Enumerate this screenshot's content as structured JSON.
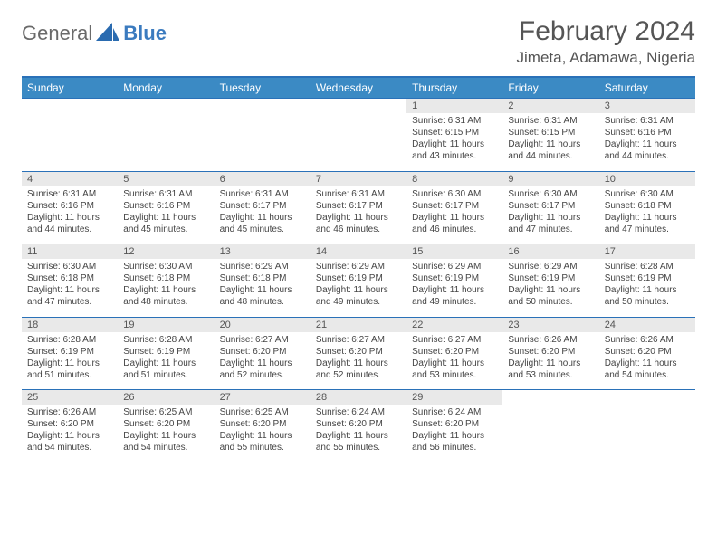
{
  "logo": {
    "text1": "General",
    "text2": "Blue"
  },
  "title": "February 2024",
  "location": "Jimeta, Adamawa, Nigeria",
  "colors": {
    "header_bg": "#3b8ac4",
    "header_text": "#ffffff",
    "border": "#2a71b8",
    "daynum_bg": "#e9e9e9",
    "text": "#444444",
    "title_color": "#555555",
    "logo_gray": "#6a6a6a",
    "logo_blue": "#3b7bbf",
    "page_bg": "#ffffff"
  },
  "typography": {
    "title_fontsize": 30,
    "location_fontsize": 17,
    "th_fontsize": 12,
    "daynum_fontsize": 11,
    "cell_fontsize": 10,
    "font_family": "Arial"
  },
  "day_headers": [
    "Sunday",
    "Monday",
    "Tuesday",
    "Wednesday",
    "Thursday",
    "Friday",
    "Saturday"
  ],
  "weeks": [
    [
      {
        "empty": true
      },
      {
        "empty": true
      },
      {
        "empty": true
      },
      {
        "empty": true
      },
      {
        "day": "1",
        "sunrise": "Sunrise: 6:31 AM",
        "sunset": "Sunset: 6:15 PM",
        "daylight": "Daylight: 11 hours and 43 minutes."
      },
      {
        "day": "2",
        "sunrise": "Sunrise: 6:31 AM",
        "sunset": "Sunset: 6:15 PM",
        "daylight": "Daylight: 11 hours and 44 minutes."
      },
      {
        "day": "3",
        "sunrise": "Sunrise: 6:31 AM",
        "sunset": "Sunset: 6:16 PM",
        "daylight": "Daylight: 11 hours and 44 minutes."
      }
    ],
    [
      {
        "day": "4",
        "sunrise": "Sunrise: 6:31 AM",
        "sunset": "Sunset: 6:16 PM",
        "daylight": "Daylight: 11 hours and 44 minutes."
      },
      {
        "day": "5",
        "sunrise": "Sunrise: 6:31 AM",
        "sunset": "Sunset: 6:16 PM",
        "daylight": "Daylight: 11 hours and 45 minutes."
      },
      {
        "day": "6",
        "sunrise": "Sunrise: 6:31 AM",
        "sunset": "Sunset: 6:17 PM",
        "daylight": "Daylight: 11 hours and 45 minutes."
      },
      {
        "day": "7",
        "sunrise": "Sunrise: 6:31 AM",
        "sunset": "Sunset: 6:17 PM",
        "daylight": "Daylight: 11 hours and 46 minutes."
      },
      {
        "day": "8",
        "sunrise": "Sunrise: 6:30 AM",
        "sunset": "Sunset: 6:17 PM",
        "daylight": "Daylight: 11 hours and 46 minutes."
      },
      {
        "day": "9",
        "sunrise": "Sunrise: 6:30 AM",
        "sunset": "Sunset: 6:17 PM",
        "daylight": "Daylight: 11 hours and 47 minutes."
      },
      {
        "day": "10",
        "sunrise": "Sunrise: 6:30 AM",
        "sunset": "Sunset: 6:18 PM",
        "daylight": "Daylight: 11 hours and 47 minutes."
      }
    ],
    [
      {
        "day": "11",
        "sunrise": "Sunrise: 6:30 AM",
        "sunset": "Sunset: 6:18 PM",
        "daylight": "Daylight: 11 hours and 47 minutes."
      },
      {
        "day": "12",
        "sunrise": "Sunrise: 6:30 AM",
        "sunset": "Sunset: 6:18 PM",
        "daylight": "Daylight: 11 hours and 48 minutes."
      },
      {
        "day": "13",
        "sunrise": "Sunrise: 6:29 AM",
        "sunset": "Sunset: 6:18 PM",
        "daylight": "Daylight: 11 hours and 48 minutes."
      },
      {
        "day": "14",
        "sunrise": "Sunrise: 6:29 AM",
        "sunset": "Sunset: 6:19 PM",
        "daylight": "Daylight: 11 hours and 49 minutes."
      },
      {
        "day": "15",
        "sunrise": "Sunrise: 6:29 AM",
        "sunset": "Sunset: 6:19 PM",
        "daylight": "Daylight: 11 hours and 49 minutes."
      },
      {
        "day": "16",
        "sunrise": "Sunrise: 6:29 AM",
        "sunset": "Sunset: 6:19 PM",
        "daylight": "Daylight: 11 hours and 50 minutes."
      },
      {
        "day": "17",
        "sunrise": "Sunrise: 6:28 AM",
        "sunset": "Sunset: 6:19 PM",
        "daylight": "Daylight: 11 hours and 50 minutes."
      }
    ],
    [
      {
        "day": "18",
        "sunrise": "Sunrise: 6:28 AM",
        "sunset": "Sunset: 6:19 PM",
        "daylight": "Daylight: 11 hours and 51 minutes."
      },
      {
        "day": "19",
        "sunrise": "Sunrise: 6:28 AM",
        "sunset": "Sunset: 6:19 PM",
        "daylight": "Daylight: 11 hours and 51 minutes."
      },
      {
        "day": "20",
        "sunrise": "Sunrise: 6:27 AM",
        "sunset": "Sunset: 6:20 PM",
        "daylight": "Daylight: 11 hours and 52 minutes."
      },
      {
        "day": "21",
        "sunrise": "Sunrise: 6:27 AM",
        "sunset": "Sunset: 6:20 PM",
        "daylight": "Daylight: 11 hours and 52 minutes."
      },
      {
        "day": "22",
        "sunrise": "Sunrise: 6:27 AM",
        "sunset": "Sunset: 6:20 PM",
        "daylight": "Daylight: 11 hours and 53 minutes."
      },
      {
        "day": "23",
        "sunrise": "Sunrise: 6:26 AM",
        "sunset": "Sunset: 6:20 PM",
        "daylight": "Daylight: 11 hours and 53 minutes."
      },
      {
        "day": "24",
        "sunrise": "Sunrise: 6:26 AM",
        "sunset": "Sunset: 6:20 PM",
        "daylight": "Daylight: 11 hours and 54 minutes."
      }
    ],
    [
      {
        "day": "25",
        "sunrise": "Sunrise: 6:26 AM",
        "sunset": "Sunset: 6:20 PM",
        "daylight": "Daylight: 11 hours and 54 minutes."
      },
      {
        "day": "26",
        "sunrise": "Sunrise: 6:25 AM",
        "sunset": "Sunset: 6:20 PM",
        "daylight": "Daylight: 11 hours and 54 minutes."
      },
      {
        "day": "27",
        "sunrise": "Sunrise: 6:25 AM",
        "sunset": "Sunset: 6:20 PM",
        "daylight": "Daylight: 11 hours and 55 minutes."
      },
      {
        "day": "28",
        "sunrise": "Sunrise: 6:24 AM",
        "sunset": "Sunset: 6:20 PM",
        "daylight": "Daylight: 11 hours and 55 minutes."
      },
      {
        "day": "29",
        "sunrise": "Sunrise: 6:24 AM",
        "sunset": "Sunset: 6:20 PM",
        "daylight": "Daylight: 11 hours and 56 minutes."
      },
      {
        "empty": true
      },
      {
        "empty": true
      }
    ]
  ]
}
